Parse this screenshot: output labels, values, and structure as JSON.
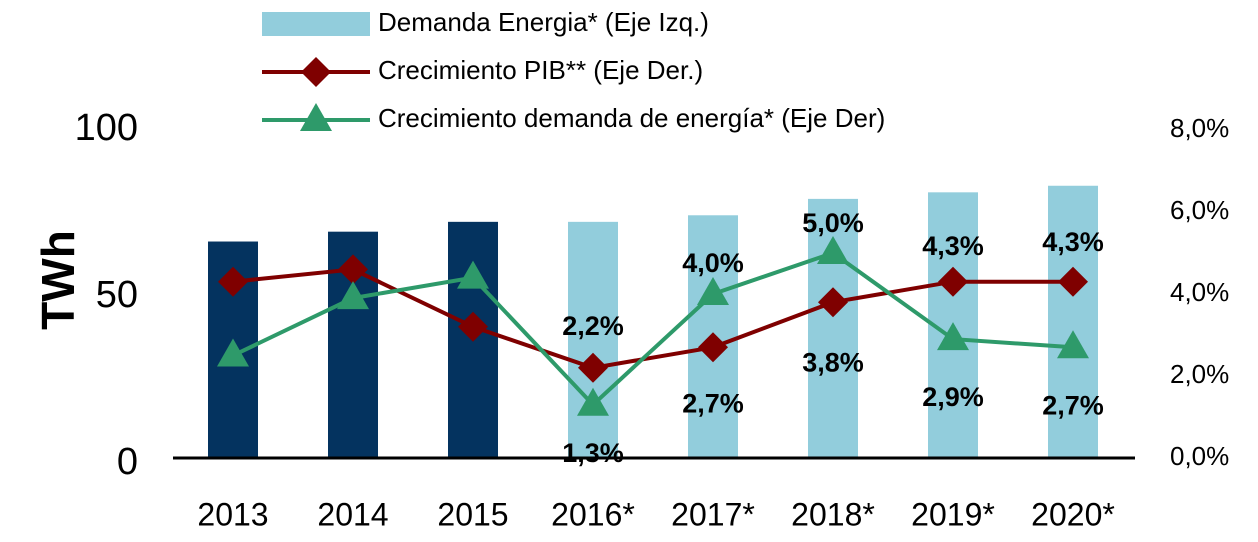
{
  "chart_data": {
    "type": "bar_line",
    "categories": [
      "2013",
      "2014",
      "2015",
      "2016*",
      "2017*",
      "2018*",
      "2019*",
      "2020*"
    ],
    "ylabel": "TWh",
    "ylim": [
      0,
      100
    ],
    "yticks": [
      0,
      50,
      100
    ],
    "y2lim": [
      0,
      8
    ],
    "y2ticks": [
      {
        "value": 0,
        "label": "0,0%"
      },
      {
        "value": 2,
        "label": "2,0%"
      },
      {
        "value": 4,
        "label": "4,0%"
      },
      {
        "value": 6,
        "label": "6,0%"
      },
      {
        "value": 8,
        "label": "8,0%"
      }
    ],
    "series": [
      {
        "name": "Demanda Energia* (Eje Izq.)",
        "type": "bar",
        "color": "#92cddc",
        "colors": [
          "#04335f",
          "#04335f",
          "#04335f",
          "#92cddc",
          "#92cddc",
          "#92cddc",
          "#92cddc",
          "#92cddc"
        ],
        "values": [
          66,
          69,
          72,
          72,
          74,
          79,
          81,
          83
        ]
      },
      {
        "name": "Crecimiento PIB** (Eje Der.)",
        "type": "line",
        "marker": "diamond",
        "axis": "y2",
        "color": "#7f0000",
        "values": [
          4.3,
          4.6,
          3.2,
          2.2,
          2.7,
          3.8,
          4.3,
          4.3
        ],
        "value_labels": [
          null,
          null,
          null,
          "2,2%",
          "2,7%",
          "3,8%",
          "4,3%",
          "4,3%"
        ]
      },
      {
        "name": "Crecimiento demanda de energía* (Eje Der)",
        "type": "line",
        "marker": "triangle",
        "axis": "y2",
        "color": "#2e9a6a",
        "values": [
          2.5,
          3.9,
          4.4,
          1.3,
          4.0,
          5.0,
          2.9,
          2.7
        ],
        "value_labels": [
          null,
          null,
          null,
          "1,3%",
          "4,0%",
          "5,0%",
          "2,9%",
          "2,7%"
        ]
      }
    ]
  }
}
